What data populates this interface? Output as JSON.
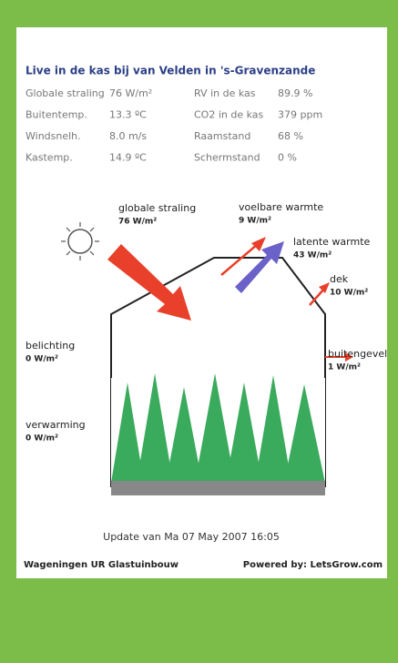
{
  "header": {
    "title": "Live in de kas bij van Velden in 's-Gravenzande"
  },
  "table": {
    "rows": [
      [
        "Globale straling",
        "76 W/m²",
        "RV in de kas",
        "89.9 %"
      ],
      [
        "Buitentemp.",
        "13.3 ºC",
        "CO2 in de kas",
        "379 ppm"
      ],
      [
        "Windsnelh.",
        "8.0 m/s",
        "Raamstand",
        "68 %"
      ],
      [
        "Kastemp.",
        "14.9 ºC",
        "Schermstand",
        "0 %"
      ]
    ]
  },
  "diagram": {
    "labels": [
      {
        "name": "globale straling",
        "value": "76 W/m²"
      },
      {
        "name": "voelbare warmte",
        "value": "9 W/m²"
      },
      {
        "name": "latente warmte",
        "value": "43 W/m²"
      },
      {
        "name": "dek",
        "value": "10 W/m²"
      },
      {
        "name": "belichting",
        "value": "0 W/m²"
      },
      {
        "name": "buitengevel",
        "value": "1 W/m²"
      },
      {
        "name": "verwarming",
        "value": "0 W/m²"
      }
    ]
  },
  "footer": {
    "update": "Update van Ma 07 May 2007 16:05",
    "left": "Wageningen UR Glastuinbouw",
    "right": "Powered by: LetsGrow.com"
  }
}
